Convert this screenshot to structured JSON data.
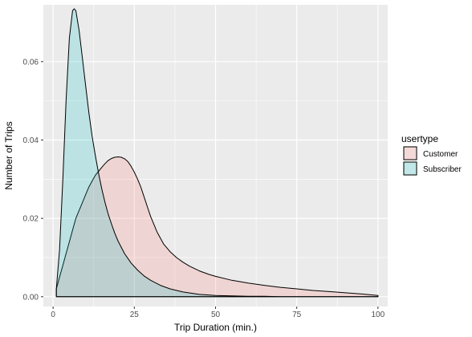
{
  "chart_data": {
    "type": "area",
    "title": "",
    "xlabel": "Trip Duration (min.)",
    "ylabel": "Number of Trips",
    "xlim": [
      -3,
      103
    ],
    "ylim": [
      -0.0025,
      0.0745
    ],
    "xticks": [
      0,
      25,
      50,
      75,
      100
    ],
    "yticks": [
      0.0,
      0.02,
      0.04,
      0.06
    ],
    "ytick_labels": [
      "0.00",
      "0.02",
      "0.04",
      "0.06"
    ],
    "grid": true,
    "legend": {
      "title": "usertype",
      "placement": "right"
    },
    "series": [
      {
        "name": "Customer",
        "color": "#f8766d",
        "x": [
          1,
          2,
          3,
          4,
          5,
          6,
          7,
          8,
          9,
          10,
          11,
          12,
          13,
          14,
          15,
          16,
          17,
          18,
          19,
          20,
          21,
          22,
          23,
          24,
          25,
          26,
          27,
          28,
          29,
          30,
          32,
          34,
          36,
          38,
          40,
          42,
          45,
          48,
          50,
          55,
          60,
          65,
          70,
          75,
          80,
          85,
          90,
          95,
          100
        ],
        "y": [
          0.002,
          0.005,
          0.008,
          0.011,
          0.014,
          0.017,
          0.02,
          0.022,
          0.024,
          0.026,
          0.028,
          0.0295,
          0.031,
          0.032,
          0.033,
          0.034,
          0.0348,
          0.0353,
          0.0356,
          0.0357,
          0.0356,
          0.0352,
          0.0345,
          0.0333,
          0.0318,
          0.03,
          0.028,
          0.0255,
          0.023,
          0.0205,
          0.0165,
          0.0135,
          0.0115,
          0.01,
          0.0088,
          0.0078,
          0.0066,
          0.0057,
          0.0052,
          0.0042,
          0.0035,
          0.0029,
          0.0024,
          0.002,
          0.0016,
          0.0013,
          0.001,
          0.0007,
          0.0003
        ]
      },
      {
        "name": "Subscriber",
        "color": "#00bfc4",
        "x": [
          1,
          2,
          3,
          4,
          5,
          6,
          6.5,
          7,
          8,
          9,
          10,
          11,
          12,
          13,
          14,
          15,
          16,
          17,
          18,
          19,
          20,
          22,
          24,
          26,
          28,
          30,
          33,
          36,
          40,
          45,
          50,
          55,
          60,
          65,
          70,
          75,
          80,
          85,
          90,
          95,
          100
        ],
        "y": [
          0.002,
          0.012,
          0.03,
          0.05,
          0.066,
          0.073,
          0.0735,
          0.073,
          0.068,
          0.061,
          0.054,
          0.047,
          0.041,
          0.036,
          0.0315,
          0.0275,
          0.024,
          0.021,
          0.0185,
          0.0162,
          0.0142,
          0.011,
          0.0086,
          0.0068,
          0.0053,
          0.0042,
          0.0029,
          0.002,
          0.0012,
          0.0006,
          0.0003,
          0.0002,
          0.0001,
          0.0001,
          0,
          0,
          0,
          0,
          0,
          0,
          0
        ]
      }
    ]
  }
}
